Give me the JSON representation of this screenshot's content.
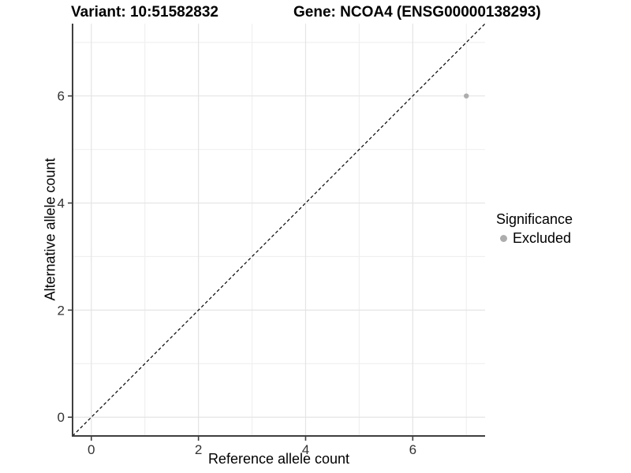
{
  "title": {
    "left": "Variant: 10:51582832",
    "right": "Gene: NCOA4 (ENSG00000138293)"
  },
  "chart_data": {
    "type": "scatter",
    "xlabel": "Reference allele count",
    "ylabel": "Alternative allele count",
    "xlim": [
      -0.35,
      7.35
    ],
    "ylim": [
      -0.35,
      7.35
    ],
    "x_major_ticks": [
      0,
      2,
      4,
      6
    ],
    "y_major_ticks": [
      0,
      2,
      4,
      6
    ],
    "x_minor_gridlines": [
      1,
      3,
      5,
      7
    ],
    "y_minor_gridlines": [
      1,
      3,
      5,
      7
    ],
    "points": [
      {
        "x": 7,
        "y": 6,
        "series": "Excluded"
      }
    ],
    "reference_line": {
      "type": "identity",
      "style": "dashed"
    },
    "legend": {
      "position": "right",
      "title": "Significance",
      "items": [
        {
          "label": "Excluded",
          "color": "#adadad"
        }
      ]
    },
    "grid": true
  },
  "colors": {
    "point": "#adadad",
    "grid_major": "#e4e4e4",
    "grid_minor": "#efefef",
    "axis_line": "#3f3f3f",
    "reference_line": "#000000",
    "tick_text": "#333333"
  }
}
